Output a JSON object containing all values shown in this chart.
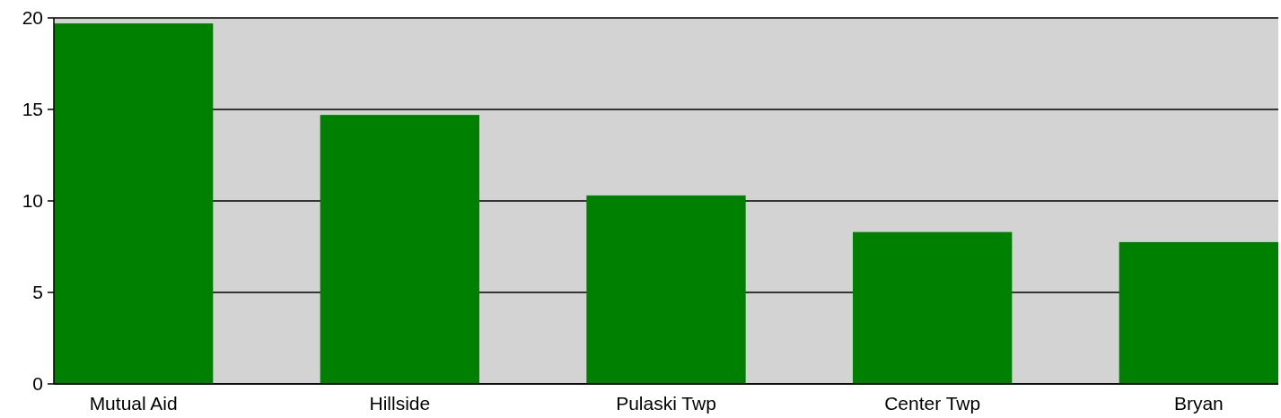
{
  "chart_data": {
    "type": "bar",
    "categories": [
      "Mutual Aid",
      "Hillside",
      "Pulaski Twp",
      "Center Twp",
      "Bryan"
    ],
    "values": [
      19.7,
      14.7,
      10.3,
      8.3,
      7.75
    ],
    "color": "#008000",
    "ylim": [
      0,
      20
    ],
    "yticks": [
      0,
      5,
      10,
      15,
      20
    ],
    "grid": "y"
  }
}
